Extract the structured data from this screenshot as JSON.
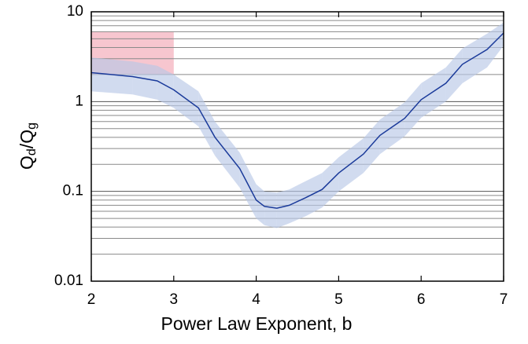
{
  "chart_data": {
    "type": "line",
    "xlabel": "Power Law Exponent, b",
    "ylabel": [
      "Q",
      "d",
      "/Q",
      "g"
    ],
    "x": [
      2,
      2.5,
      2.8,
      3.0,
      3.3,
      3.5,
      3.8,
      4.0,
      4.1,
      4.25,
      4.4,
      4.6,
      4.8,
      5.0,
      5.3,
      5.5,
      5.8,
      6.0,
      6.3,
      6.5,
      6.8,
      7.0
    ],
    "values": [
      2.1,
      1.9,
      1.7,
      1.35,
      0.85,
      0.4,
      0.18,
      0.08,
      0.068,
      0.065,
      0.07,
      0.085,
      0.105,
      0.16,
      0.26,
      0.42,
      0.65,
      1.05,
      1.6,
      2.6,
      3.8,
      5.8
    ],
    "color": "#1a3a9a",
    "band": {
      "upper": [
        3.1,
        2.8,
        2.5,
        2.0,
        1.3,
        0.6,
        0.27,
        0.12,
        0.1,
        0.097,
        0.105,
        0.13,
        0.16,
        0.24,
        0.39,
        0.63,
        0.98,
        1.6,
        2.4,
        3.9,
        5.7,
        7.6
      ],
      "lower": [
        1.3,
        1.2,
        1.05,
        0.85,
        0.53,
        0.25,
        0.11,
        0.05,
        0.042,
        0.039,
        0.044,
        0.053,
        0.066,
        0.1,
        0.16,
        0.26,
        0.41,
        0.66,
        1.0,
        1.6,
        2.4,
        4.2
      ],
      "color": "#b9c8e6"
    },
    "highlight": {
      "xlim": [
        2,
        3
      ],
      "ylim": [
        2,
        6
      ],
      "color": "#f7c6cf"
    },
    "xlim": [
      2,
      7
    ],
    "xticks": [
      2,
      3,
      4,
      5,
      6,
      7
    ],
    "ylim": [
      0.01,
      10
    ],
    "yticks": [
      0.01,
      0.1,
      1,
      10
    ],
    "minor_yticks": [
      0.02,
      0.03,
      0.04,
      0.05,
      0.06,
      0.07,
      0.08,
      0.09,
      0.2,
      0.3,
      0.4,
      0.5,
      0.6,
      0.7,
      0.8,
      0.9,
      2,
      3,
      4,
      5,
      6,
      7,
      8,
      9
    ],
    "log_y": true,
    "grid": true
  }
}
